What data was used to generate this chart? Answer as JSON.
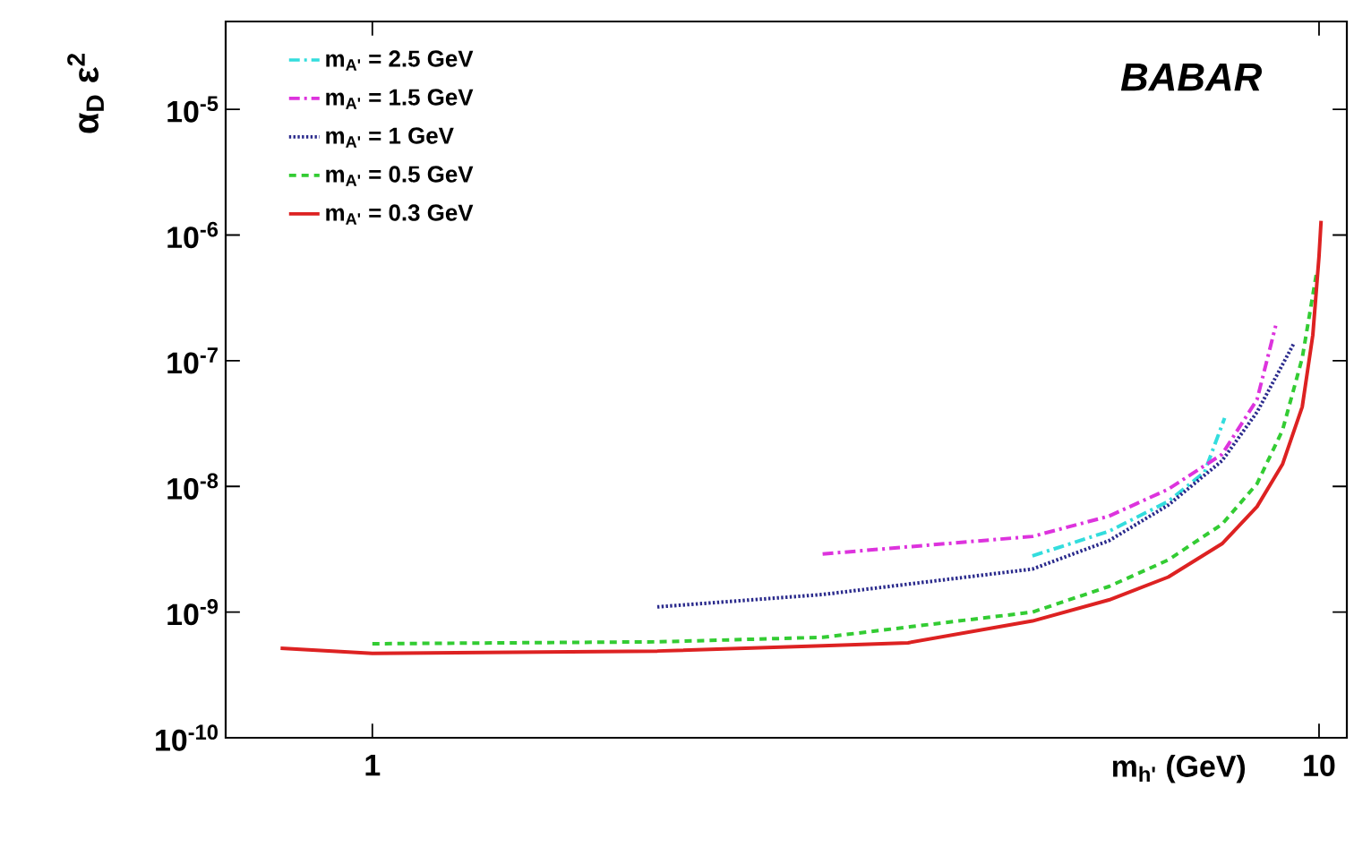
{
  "chart_data": {
    "type": "line",
    "xlabel": "m$_{h'}$ (GeV)",
    "ylabel": "α$_{D}$ ε$^{2}$",
    "log": "xy",
    "grid": false,
    "legend": "top left",
    "marker": "none",
    "xlim": [
      0.7,
      10.7
    ],
    "ylim": [
      1e-10,
      5e-05
    ],
    "xticks": [
      1,
      10
    ],
    "yticks": [
      {
        "value": 1e-10,
        "label": "10$^{-10}$"
      },
      {
        "value": 1e-09,
        "label": "10$^{-9}$"
      },
      {
        "value": 1e-08,
        "label": "10$^{-8}$"
      },
      {
        "value": 1e-07,
        "label": "10$^{-7}$"
      },
      {
        "value": 1e-06,
        "label": "10$^{-6}$"
      },
      {
        "value": 1e-05,
        "label": "10$^{-5}$"
      }
    ],
    "annotations": [
      "BABAR"
    ],
    "series": [
      {
        "name": "m$_{A'}$ = 2.5 GeV",
        "color": "#33dddd",
        "line_style": "dashdot",
        "x": [
          4.98,
          6.0,
          6.93,
          7.57,
          7.95
        ],
        "values": [
          2.8e-09,
          4.4e-09,
          7.6e-09,
          1.3e-08,
          3.5e-08
        ]
      },
      {
        "name": "m$_{A'}$ = 1.5 GeV",
        "color": "#dd33dd",
        "line_style": "dashdot",
        "x": [
          2.99,
          4.98,
          6.0,
          6.93,
          7.9,
          8.6,
          9.0
        ],
        "values": [
          2.9e-09,
          4e-09,
          5.8e-09,
          9.5e-09,
          1.8e-08,
          4.9e-08,
          1.9e-07
        ]
      },
      {
        "name": "m$_{A'}$ = 1 GeV",
        "color": "#2a2a8c",
        "line_style": "dotted",
        "x": [
          2.0,
          2.99,
          4.98,
          6.0,
          6.93,
          7.9,
          8.6,
          9.4
        ],
        "values": [
          1.1e-09,
          1.38e-09,
          2.2e-09,
          3.7e-09,
          7.1e-09,
          1.6e-08,
          3.9e-08,
          1.36e-07
        ]
      },
      {
        "name": "m$_{A'}$ = 0.5 GeV",
        "color": "#33cc33",
        "line_style": "dashed",
        "x": [
          1.0,
          2.0,
          2.99,
          4.98,
          6.0,
          6.93,
          7.9,
          8.6,
          9.15,
          9.6,
          9.94
        ],
        "values": [
          5.6e-10,
          5.8e-10,
          6.3e-10,
          1e-09,
          1.6e-09,
          2.6e-09,
          5e-09,
          1.05e-08,
          2.8e-08,
          1.05e-07,
          5e-07
        ]
      },
      {
        "name": "m$_{A'}$ = 0.3 GeV",
        "color": "#dd2222",
        "line_style": "solid",
        "x": [
          0.8,
          1.0,
          2.0,
          2.99,
          3.68,
          4.98,
          6.0,
          6.93,
          7.9,
          8.6,
          9.15,
          9.6,
          9.85,
          10.0,
          10.05
        ],
        "values": [
          5.15e-10,
          4.7e-10,
          4.9e-10,
          5.4e-10,
          5.7e-10,
          8.5e-10,
          1.25e-09,
          1.9e-09,
          3.5e-09,
          6.9e-09,
          1.5e-08,
          4.3e-08,
          1.6e-07,
          6.8e-07,
          1.3e-06
        ]
      }
    ]
  }
}
